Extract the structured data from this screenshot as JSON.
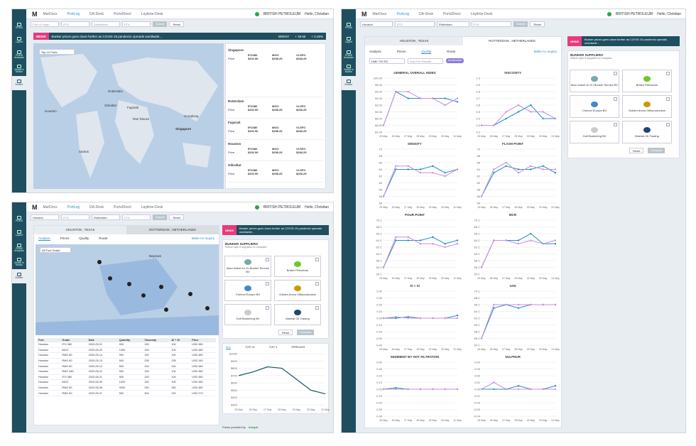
{
  "app": {
    "logo": "M",
    "nav": [
      "MarDocs",
      "PortLog",
      "DA-Desk",
      "PortsDirect",
      "Laytime-Desk"
    ],
    "company": "BRITISH PETROLEUM",
    "greeting": "Hello, Christian"
  },
  "sidebar": [
    "PDMS",
    "Laytrel",
    "PDMS Analytics",
    "Vessel in Motion",
    "Bunker"
  ],
  "search": {
    "port_from": "Port of Origin",
    "etd": "ETD",
    "port_to": "Destination",
    "eta": "ETA",
    "submit": "Submit",
    "reset": "Reset",
    "from_value": "Houston",
    "to_value": "Rotterdam"
  },
  "news": {
    "tag": "NEWS",
    "text": "Bunker prices goes down further as COVID 19 pandemic spreads worldwide...",
    "brent_label": "BRENT",
    "brent_value": "+ 39.55",
    "brent_pct": "+ 0.25%"
  },
  "panel1": {
    "dropdown": "Top 10 Ports",
    "map_labels": [
      "Rotterdam",
      "Gibraltar",
      "Houston",
      "Fujairah",
      "Ras Tanura",
      "Hongkong",
      "Singapore",
      "Santos"
    ],
    "ports": [
      {
        "name": "Singapore",
        "grades": [
          "IFO380",
          "MGO",
          "VLSFO"
        ],
        "price_label": "Price",
        "prices": [
          "$202.50",
          "$298.25",
          "$268.25"
        ]
      },
      {
        "name": "Rotterdam",
        "grades": [
          "IFO380",
          "MGO",
          "VLSFO"
        ],
        "price_label": "Price",
        "prices": [
          "$202.50",
          "$298.25",
          "$268.25"
        ]
      },
      {
        "name": "Fujairah",
        "grades": [
          "IFO380",
          "MGO",
          "VLSFO"
        ],
        "price_label": "Price",
        "prices": [
          "$202.50",
          "$298.25",
          "$268.25"
        ]
      },
      {
        "name": "Houston",
        "grades": [
          "IFO380",
          "MGO",
          "VLSFO"
        ],
        "price_label": "Price",
        "prices": [
          "$202.50",
          "$298.25",
          "$268.25"
        ]
      },
      {
        "name": "Gibraltar",
        "grades": [
          "IFO380",
          "MGO",
          "VLSFO"
        ],
        "price_label": "Price",
        "prices": [
          "$202.50",
          "$298.25",
          "$268.25"
        ]
      }
    ]
  },
  "panel2": {
    "route_from": "HOUSTON , TEXAS",
    "route_to": "ROTTERDAM , NETHERLANDS",
    "tabs": [
      "Analysis",
      "Prices",
      "Quality",
      "Route"
    ],
    "inquiry": "Make An Inquiry",
    "grade_select": "All Fuel Grade",
    "map_label": "Baytown",
    "table_headers": [
      "Port",
      "Grade",
      "Date",
      "Quantity",
      "Viscosity",
      "Al + Si",
      "Price"
    ],
    "rows": [
      [
        "Houston",
        "IFO 380",
        "2020-05-21",
        "900",
        "150",
        "100",
        "USD 380"
      ],
      [
        "Houston",
        "MGO",
        "2020-05-20",
        "1000",
        "150",
        "100",
        "USD 380"
      ],
      [
        "Houston",
        "RMG 80",
        "2020-05-14",
        "900",
        "150",
        "100",
        "USD 380"
      ],
      [
        "Houston",
        "RMG 80",
        "2020-05-13",
        "500",
        "235",
        "235",
        "USD 345"
      ],
      [
        "Houston",
        "RMG 80",
        "2020-05-12",
        "500",
        "240",
        "240",
        "USD 380"
      ],
      [
        "Houston",
        "RMG 380",
        "2020-05-12",
        "900",
        "150",
        "100",
        "USD 380"
      ],
      [
        "Houston",
        "IFO 380",
        "2020-05-11",
        "900",
        "150",
        "100",
        "USD 380"
      ],
      [
        "Houston",
        "MGO",
        "2020-05-09",
        "1000",
        "150",
        "100",
        "USD 380"
      ],
      [
        "Houston",
        "RMG 80",
        "2020-05-08",
        "9000",
        "260",
        "260",
        "USD 380"
      ],
      [
        "Houston",
        "RMG 80",
        "2020-05-07",
        "500",
        "300",
        "240",
        "USD 373"
      ]
    ],
    "supplier_title": "BUNKER SUPPLIERS",
    "supplier_sub": "Select upto 5 suppliers to compare",
    "suppliers": [
      "Akzo Nobel en Zn Bunker Service BV",
      "British Petroleum",
      "Chemol Europe BV",
      "Golden Arrow Oilleproduction",
      "Gulf Bunkering BV",
      "Maersk Oil Trading"
    ],
    "reset": "Reset",
    "compare": "Compare",
    "price_tabs": [
      "ALL",
      "TOP 20",
      "TOP 4",
      "SPREADS"
    ],
    "price_y": [
      "$1000",
      "$900",
      "$800",
      "$700",
      "$600",
      "$500",
      "$400",
      "$300"
    ],
    "price_x": [
      "25 May",
      "26 May",
      "27 May",
      "28 May",
      "29 May",
      "30 May",
      "31 May"
    ],
    "footer": "Prices provided by",
    "footer_brand": "Integr8"
  },
  "panel3": {
    "quality_select": "DMK 700 R3",
    "add_port": "Add Port Results",
    "chip": "Amsterdam",
    "x_labels": [
      "25 May",
      "26 May",
      "27 May",
      "28 May",
      "29 May",
      "30 May",
      "31 May"
    ]
  },
  "chart_data": [
    {
      "type": "line",
      "title": "GENERAL OVERALL INDEX",
      "yticks": [
        "100.00",
        "98.00",
        "96.00",
        "94.00",
        "92.00",
        "90.00",
        "88.00",
        "86.00",
        "84.00"
      ],
      "ylim": [
        84,
        100
      ],
      "series": [
        {
          "values": [
            86,
            96,
            96,
            94,
            94,
            92,
            94
          ]
        },
        {
          "values": [
            86,
            96,
            94,
            94,
            94,
            94,
            93
          ]
        }
      ]
    },
    {
      "type": "line",
      "title": "VISCOSITY",
      "yticks": [
        "1.0",
        "0.9",
        "0.8",
        "0.7",
        "0.6",
        "0.5",
        "0.4",
        "0.3",
        "0.2"
      ],
      "ylim": [
        0.2,
        1.0
      ],
      "series": [
        {
          "values": [
            0.3,
            0.3,
            0.5,
            0.6,
            0.5,
            0.5,
            0.4
          ]
        },
        {
          "values": [
            0.3,
            0.3,
            0.4,
            0.5,
            0.6,
            0.4,
            0.4
          ]
        }
      ]
    },
    {
      "type": "line",
      "title": "DENSITY",
      "yticks": [
        "70",
        "68",
        "66",
        "64",
        "62",
        "60",
        "58",
        "56",
        "54"
      ],
      "ylim": [
        54,
        70
      ],
      "series": [
        {
          "values": [
            56,
            65,
            65,
            63,
            63,
            62,
            64
          ]
        },
        {
          "values": [
            56,
            64,
            64,
            64,
            65,
            63,
            64
          ]
        }
      ]
    },
    {
      "type": "line",
      "title": "FLASH POINT",
      "yticks": [
        "70",
        "68",
        "66",
        "64",
        "62",
        "60",
        "58",
        "56",
        "54"
      ],
      "ylim": [
        54,
        70
      ],
      "series": [
        {
          "values": [
            56,
            64,
            66,
            63,
            65,
            64,
            64
          ]
        },
        {
          "values": [
            56,
            63,
            65,
            64,
            64,
            65,
            63
          ]
        }
      ]
    },
    {
      "type": "line",
      "title": "POUR POINT",
      "yticks": [
        "70 C",
        "68 C",
        "66 C",
        "64 C",
        "62 C",
        "60 C",
        "58 C",
        "56 C",
        "54 C"
      ],
      "ylim": [
        54,
        70
      ],
      "series": [
        {
          "values": [
            56,
            65,
            65,
            63,
            63,
            62,
            63
          ]
        },
        {
          "values": [
            56,
            64,
            64,
            64,
            65,
            63,
            64
          ]
        }
      ]
    },
    {
      "type": "line",
      "title": "MCR",
      "yticks": [
        "70 C",
        "68 C",
        "66 C",
        "64 C",
        "62 C",
        "60 C",
        "58 C",
        "56 C",
        "54 C"
      ],
      "ylim": [
        54,
        70
      ],
      "series": [
        {
          "values": [
            56,
            64,
            64,
            63,
            64,
            63,
            64
          ]
        },
        {
          "values": [
            56,
            64,
            64,
            64,
            66,
            63,
            63
          ]
        }
      ]
    },
    {
      "type": "line",
      "title": "Al + Si",
      "yticks": [
        "0.40",
        "0.30",
        "0.20",
        "0.10",
        "0.00",
        "-0.10",
        "-0.20",
        "-0.30",
        "-0.40"
      ],
      "ylim": [
        -0.4,
        0.4
      ],
      "series": [
        {
          "values": [
            0,
            0.02,
            0,
            0,
            0,
            0,
            0
          ]
        },
        {
          "values": [
            0,
            0,
            0.02,
            0,
            0,
            0,
            0.04
          ]
        }
      ]
    },
    {
      "type": "line",
      "title": "VAN",
      "yticks": [
        "70 C",
        "68 C",
        "66 C",
        "64 C",
        "62 C",
        "60 C",
        "58 C",
        "56 C",
        "54 C"
      ],
      "ylim": [
        54,
        70
      ],
      "series": [
        {
          "values": [
            56,
            66,
            66,
            66,
            66,
            66,
            66
          ]
        },
        {
          "values": [
            56,
            65,
            66,
            65,
            66,
            66,
            66
          ]
        }
      ]
    },
    {
      "type": "line",
      "title": "SEDIMENT BY HOT FILTRATION",
      "yticks": [
        "0.40",
        "0.30",
        "0.20",
        "0.10",
        "0.00",
        "-0.10",
        "-0.20",
        "-0.30",
        "-0.40"
      ],
      "ylim": [
        -0.4,
        0.4
      ],
      "series": [
        {
          "values": [
            0,
            0,
            0,
            0,
            0,
            0,
            0
          ]
        },
        {
          "values": [
            0,
            0.02,
            0,
            0,
            0,
            0,
            0
          ]
        }
      ]
    },
    {
      "type": "line",
      "title": "SULPHUR",
      "yticks": [
        "0.04",
        "0.03",
        "0.02",
        "0.01",
        "0.00",
        "-0.01",
        "-0.02",
        "-0.03",
        "-0.04"
      ],
      "ylim": [
        -0.04,
        0.04
      ],
      "series": [
        {
          "values": [
            0,
            0.01,
            0,
            0,
            0,
            0,
            0
          ]
        },
        {
          "values": [
            0,
            0,
            0,
            0.005,
            0,
            0,
            0.005
          ]
        }
      ]
    },
    {
      "type": "line",
      "title": "",
      "x": [
        "25 May",
        "26 May",
        "27 May",
        "28 May",
        "29 May",
        "30 May",
        "31 May"
      ],
      "ylim": [
        300,
        1000
      ],
      "series": [
        {
          "values": [
            700,
            750,
            820,
            800,
            650,
            500,
            450
          ]
        }
      ]
    }
  ]
}
